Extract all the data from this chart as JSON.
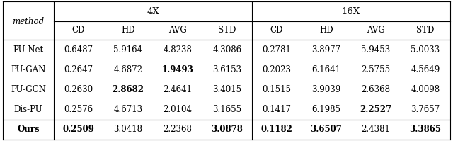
{
  "col_groups": [
    "4X",
    "16X"
  ],
  "sub_cols": [
    "CD",
    "HD",
    "AVG",
    "STD"
  ],
  "row_labels": [
    "PU-Net",
    "PU-GAN",
    "PU-GCN",
    "Dis-PU",
    "Ours"
  ],
  "data_4x": [
    [
      "0.6487",
      "5.9164",
      "4.8238",
      "4.3086"
    ],
    [
      "0.2647",
      "4.6872",
      "1.9493",
      "3.6153"
    ],
    [
      "0.2630",
      "2.8682",
      "2.4641",
      "3.4015"
    ],
    [
      "0.2576",
      "4.6713",
      "2.0104",
      "3.1655"
    ],
    [
      "0.2509",
      "3.0418",
      "2.2368",
      "3.0878"
    ]
  ],
  "data_16x": [
    [
      "0.2781",
      "3.8977",
      "5.9453",
      "5.0033"
    ],
    [
      "0.2023",
      "6.1641",
      "2.5755",
      "4.5649"
    ],
    [
      "0.1515",
      "3.9039",
      "2.6368",
      "4.0098"
    ],
    [
      "0.1417",
      "6.1985",
      "2.2527",
      "3.7657"
    ],
    [
      "0.1182",
      "3.6507",
      "2.4381",
      "3.3865"
    ]
  ],
  "bold_cells_4x": [
    [
      false,
      false,
      false,
      false
    ],
    [
      false,
      false,
      true,
      false
    ],
    [
      false,
      true,
      false,
      false
    ],
    [
      false,
      false,
      false,
      false
    ],
    [
      true,
      false,
      false,
      true
    ]
  ],
  "bold_cells_16x": [
    [
      false,
      false,
      false,
      false
    ],
    [
      false,
      false,
      false,
      false
    ],
    [
      false,
      false,
      false,
      false
    ],
    [
      false,
      false,
      true,
      false
    ],
    [
      true,
      true,
      false,
      true
    ]
  ],
  "bg_color": "#ffffff",
  "text_color": "#000000",
  "lc": "#000000",
  "fontsize": 8.5,
  "header_fontsize": 9.5
}
